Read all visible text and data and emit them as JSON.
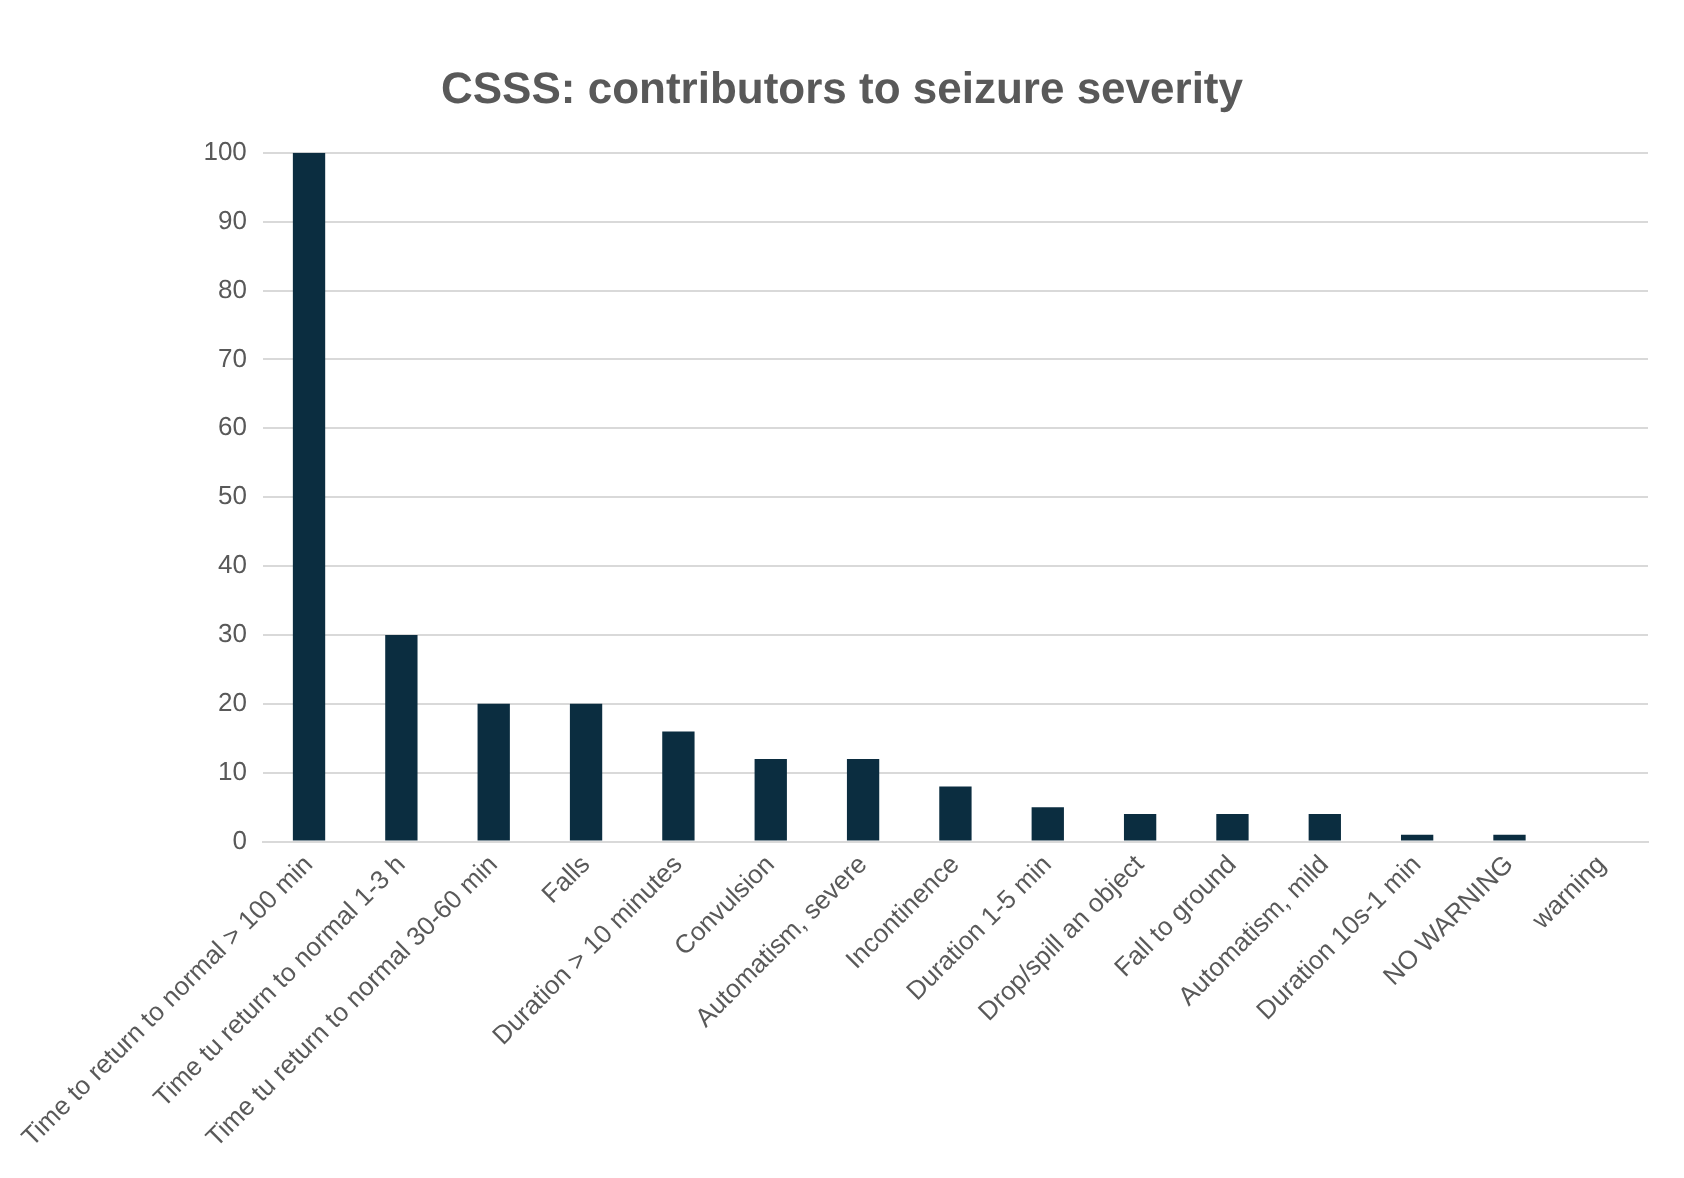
{
  "chart_data": {
    "type": "bar",
    "title": "CSSS: contributors to seizure severity",
    "categories": [
      "Time to return to normal > 100 min",
      "Time tu return to normal 1-3 h",
      "Time tu return to normal 30-60 min",
      "Falls",
      "Duration > 10 minutes",
      "Convulsion",
      "Automatism, severe",
      "Incontinence",
      "Duration 1-5 min",
      "Drop/spill an object",
      "Fall to ground",
      "Automatism, mild",
      "Duration 10s-1 min",
      "NO WARNING",
      "warning"
    ],
    "values": [
      100,
      30,
      20,
      20,
      16,
      12,
      12,
      8,
      5,
      4,
      4,
      4,
      1,
      1,
      0
    ],
    "color": "#0b2d40",
    "ylim": [
      0,
      100
    ],
    "yticks": [
      0,
      10,
      20,
      30,
      40,
      50,
      60,
      70,
      80,
      90,
      100
    ],
    "grid": "y",
    "legend": false
  }
}
